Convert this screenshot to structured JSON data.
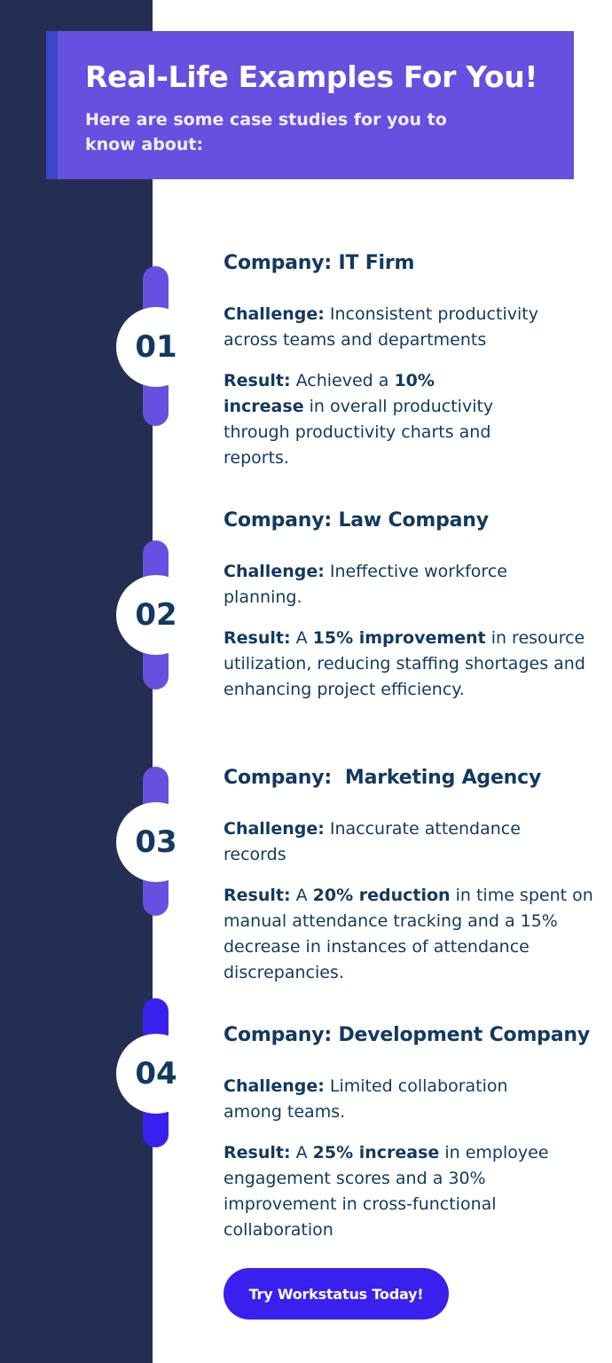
{
  "header": {
    "title": "Real-Life Examples For You!",
    "subtitle": "Here are some case studies for you to know about:"
  },
  "labels": {
    "company": "Company:",
    "challenge": "Challenge:",
    "result": "Result:"
  },
  "cases": [
    {
      "number": "01",
      "company": "IT Firm",
      "challenge": "Inconsistent productivity across teams and departments",
      "result_pre": "Achieved a",
      "result_bold": "10% increase",
      "result_post": "in overall productivity through productivity charts and reports."
    },
    {
      "number": "02",
      "company": "Law Company",
      "challenge": "Ineffective workforce planning.",
      "result_pre": "A",
      "result_bold": "15% improvement",
      "result_post": "in resource utilization, reducing staffing shortages and enhancing project efficiency."
    },
    {
      "number": "03",
      "company": " Marketing Agency",
      "challenge": "Inaccurate attendance records",
      "result_pre": "A",
      "result_bold": "20% reduction",
      "result_post": "in time spent on manual attendance tracking and a 15% decrease in instances of attendance discrepancies."
    },
    {
      "number": "04",
      "company": "Development Company",
      "challenge": "Limited collaboration among teams.",
      "result_pre": "A",
      "result_bold": "25% increase",
      "result_post": "in employee engagement scores and a 30% improvement in cross-functional collaboration"
    }
  ],
  "cta": {
    "label": "Try Workstatus Today!"
  },
  "colors": {
    "sidebar": "#242e52",
    "banner": "#6650e0",
    "banner_stripe": "#3b46c9",
    "accent": "#3a20ee",
    "text": "#12395f"
  }
}
